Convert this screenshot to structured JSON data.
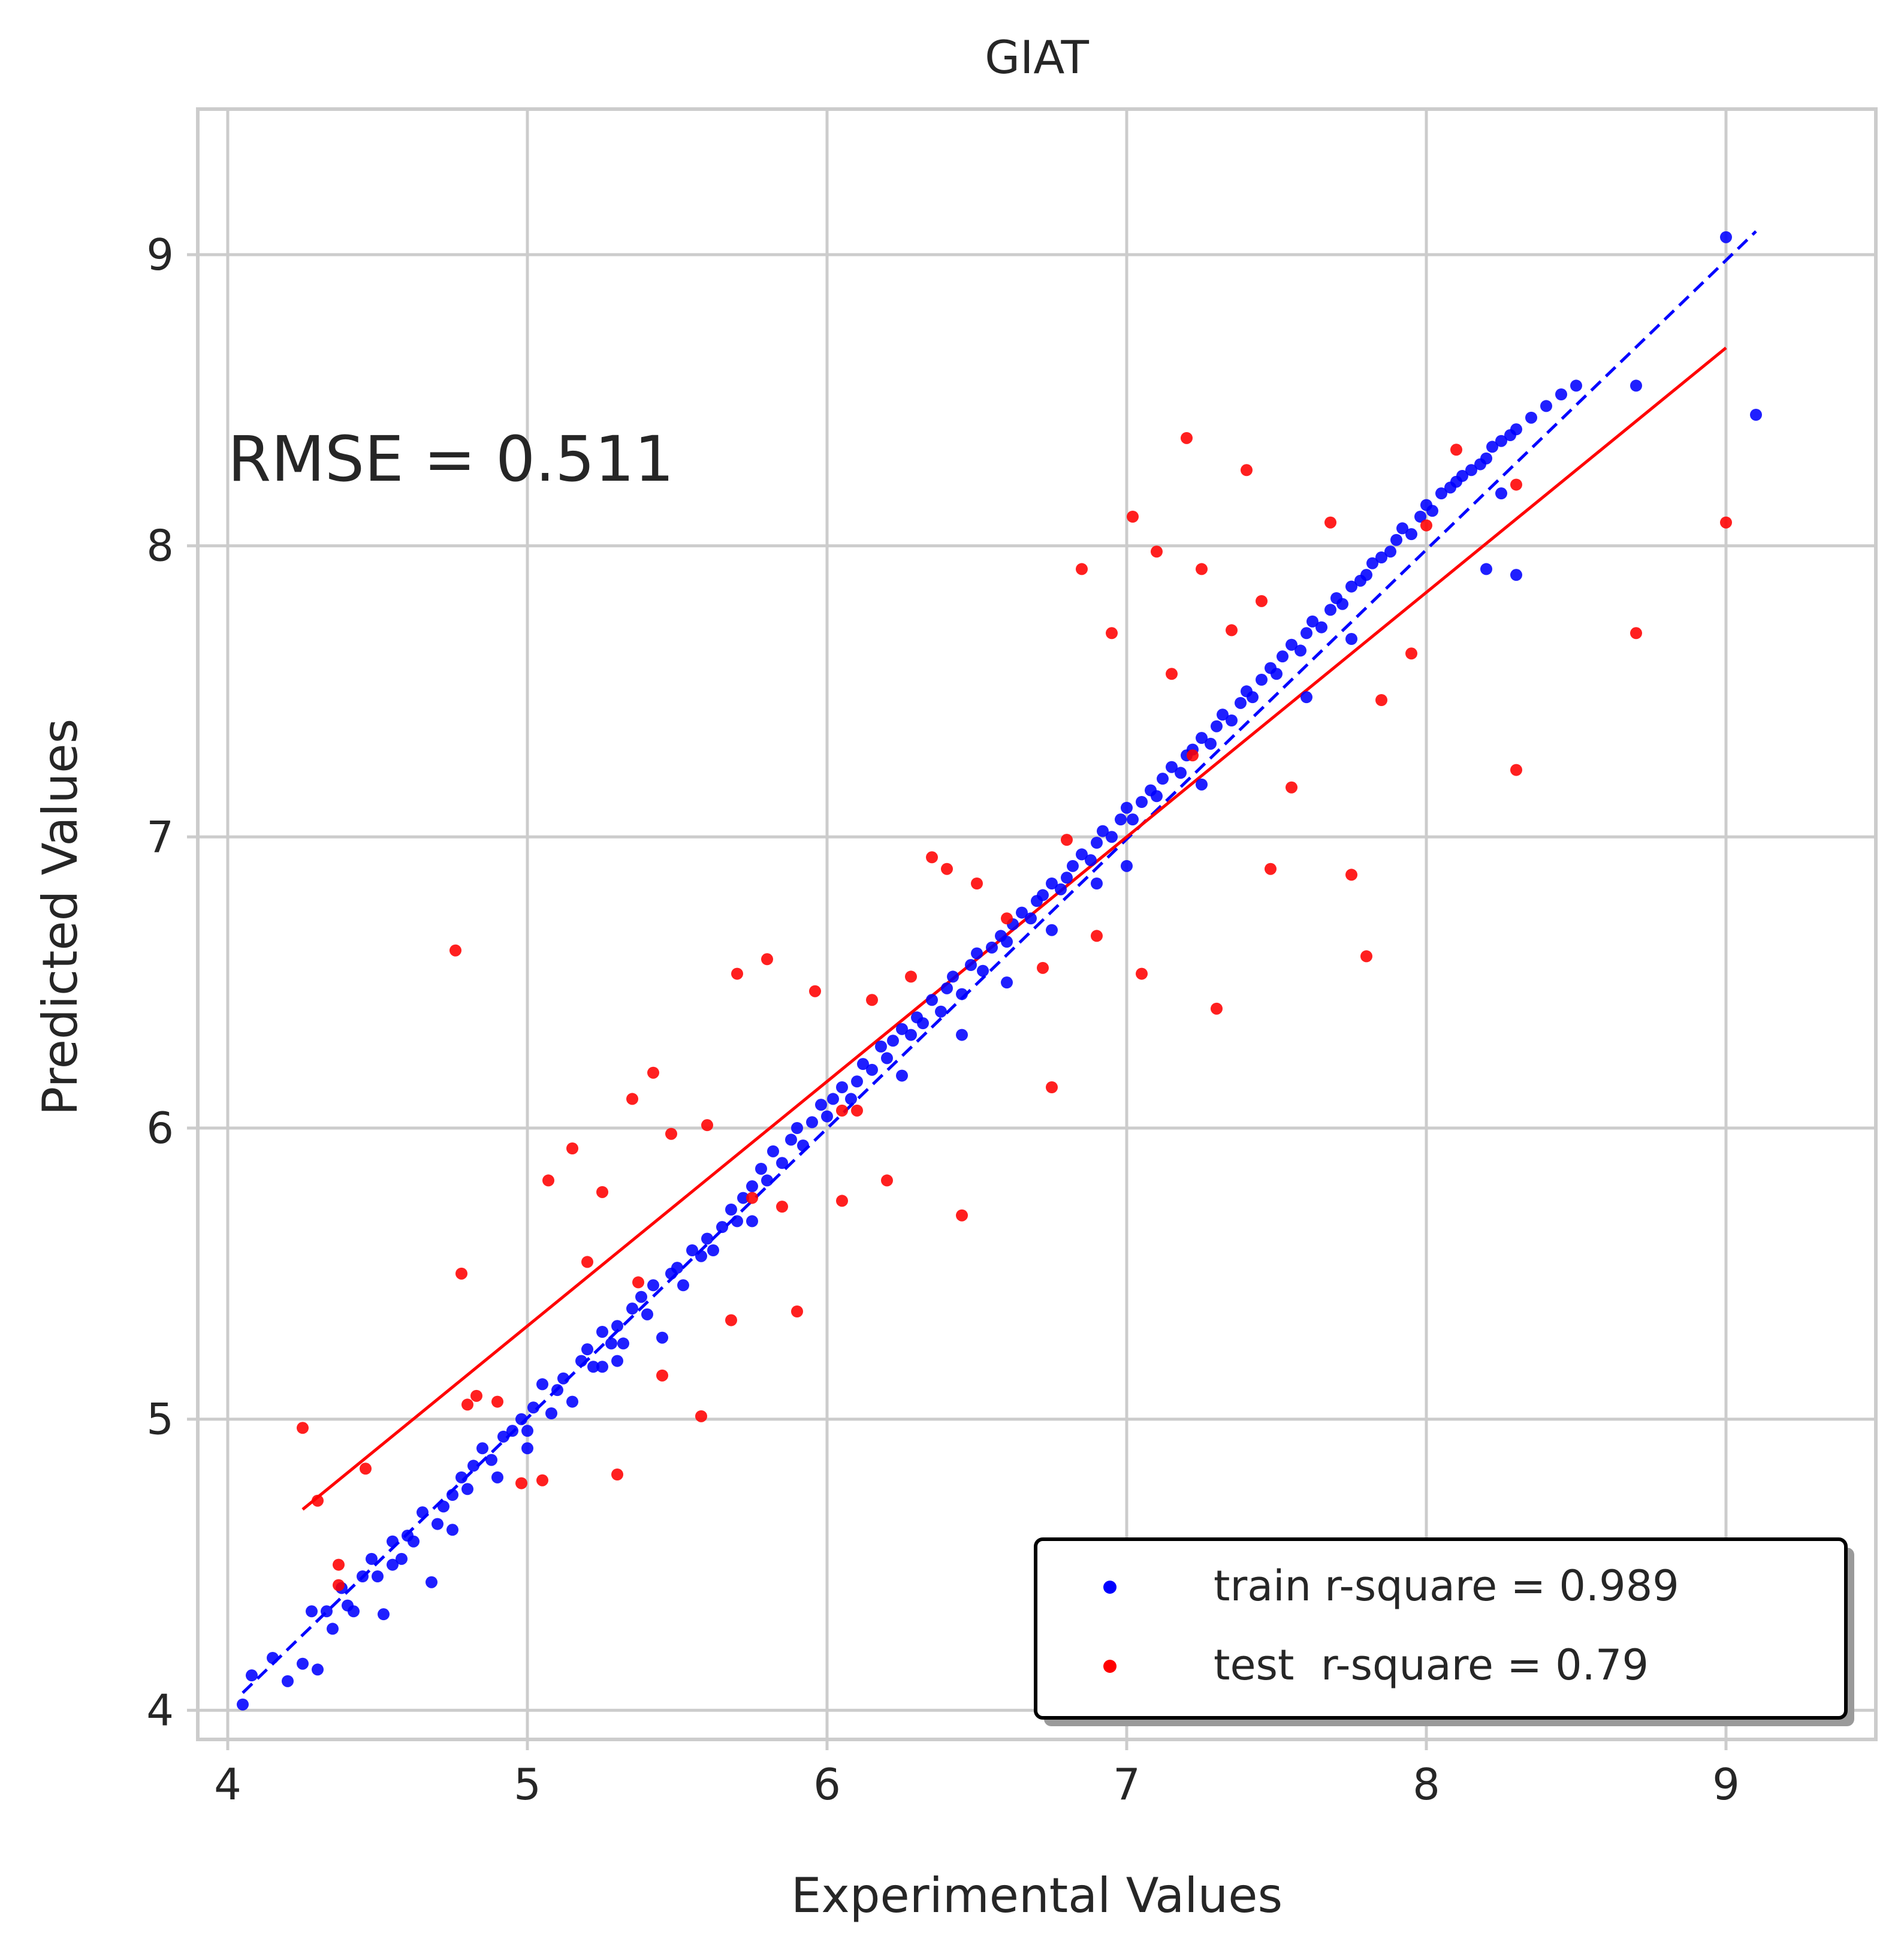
{
  "chart_data": {
    "type": "scatter",
    "title": "GIAT",
    "xlabel": "Experimental Values",
    "ylabel": "Predicted Values",
    "xlim": [
      3.9,
      9.5
    ],
    "ylim": [
      3.9,
      9.5
    ],
    "xticks": [
      4,
      5,
      6,
      7,
      8,
      9
    ],
    "yticks": [
      4,
      5,
      6,
      7,
      8,
      9
    ],
    "grid": true,
    "legend_position": "bottom-right",
    "annotation": "RMSE = 0.511",
    "colors": {
      "train": "#0000ff",
      "test": "#ff0000",
      "grid": "#cccccc"
    },
    "series": [
      {
        "name": "train r-square = 0.989",
        "color": "#0000ff",
        "points": [
          [
            4.05,
            4.02
          ],
          [
            4.08,
            4.12
          ],
          [
            4.15,
            4.18
          ],
          [
            4.2,
            4.1
          ],
          [
            4.25,
            4.16
          ],
          [
            4.28,
            4.34
          ],
          [
            4.3,
            4.14
          ],
          [
            4.33,
            4.34
          ],
          [
            4.35,
            4.28
          ],
          [
            4.38,
            4.42
          ],
          [
            4.4,
            4.36
          ],
          [
            4.42,
            4.34
          ],
          [
            4.45,
            4.46
          ],
          [
            4.48,
            4.52
          ],
          [
            4.5,
            4.46
          ],
          [
            4.52,
            4.33
          ],
          [
            4.55,
            4.58
          ],
          [
            4.58,
            4.52
          ],
          [
            4.6,
            4.6
          ],
          [
            4.62,
            4.58
          ],
          [
            4.65,
            4.68
          ],
          [
            4.68,
            4.44
          ],
          [
            4.7,
            4.64
          ],
          [
            4.72,
            4.7
          ],
          [
            4.75,
            4.74
          ],
          [
            4.78,
            4.8
          ],
          [
            4.8,
            4.76
          ],
          [
            4.82,
            4.84
          ],
          [
            4.85,
            4.9
          ],
          [
            4.88,
            4.86
          ],
          [
            4.9,
            4.8
          ],
          [
            4.92,
            4.94
          ],
          [
            4.95,
            4.96
          ],
          [
            4.98,
            5.0
          ],
          [
            5.0,
            4.96
          ],
          [
            5.02,
            5.04
          ],
          [
            5.05,
            5.12
          ],
          [
            5.08,
            5.02
          ],
          [
            5.1,
            5.1
          ],
          [
            5.12,
            5.14
          ],
          [
            5.15,
            5.06
          ],
          [
            5.18,
            5.2
          ],
          [
            5.2,
            5.24
          ],
          [
            5.22,
            5.18
          ],
          [
            5.25,
            5.3
          ],
          [
            5.28,
            5.26
          ],
          [
            5.3,
            5.32
          ],
          [
            5.32,
            5.26
          ],
          [
            5.35,
            5.38
          ],
          [
            5.38,
            5.42
          ],
          [
            5.4,
            5.36
          ],
          [
            5.42,
            5.46
          ],
          [
            5.45,
            5.28
          ],
          [
            5.48,
            5.5
          ],
          [
            5.5,
            5.52
          ],
          [
            5.52,
            5.46
          ],
          [
            5.55,
            5.58
          ],
          [
            5.58,
            5.56
          ],
          [
            5.6,
            5.62
          ],
          [
            5.62,
            5.58
          ],
          [
            5.65,
            5.66
          ],
          [
            5.68,
            5.72
          ],
          [
            5.7,
            5.68
          ],
          [
            5.72,
            5.76
          ],
          [
            5.75,
            5.8
          ],
          [
            5.78,
            5.86
          ],
          [
            5.8,
            5.82
          ],
          [
            5.82,
            5.92
          ],
          [
            5.85,
            5.88
          ],
          [
            5.88,
            5.96
          ],
          [
            5.9,
            6.0
          ],
          [
            5.92,
            5.94
          ],
          [
            5.95,
            6.02
          ],
          [
            5.98,
            6.08
          ],
          [
            6.0,
            6.04
          ],
          [
            6.02,
            6.1
          ],
          [
            6.05,
            6.14
          ],
          [
            6.08,
            6.1
          ],
          [
            6.1,
            6.16
          ],
          [
            6.12,
            6.22
          ],
          [
            6.15,
            6.2
          ],
          [
            6.18,
            6.28
          ],
          [
            6.2,
            6.24
          ],
          [
            6.22,
            6.3
          ],
          [
            6.25,
            6.34
          ],
          [
            6.28,
            6.32
          ],
          [
            6.3,
            6.38
          ],
          [
            6.32,
            6.36
          ],
          [
            6.35,
            6.44
          ],
          [
            6.38,
            6.4
          ],
          [
            6.4,
            6.48
          ],
          [
            6.42,
            6.52
          ],
          [
            6.45,
            6.46
          ],
          [
            6.48,
            6.56
          ],
          [
            6.5,
            6.6
          ],
          [
            6.52,
            6.54
          ],
          [
            6.55,
            6.62
          ],
          [
            6.58,
            6.66
          ],
          [
            6.6,
            6.64
          ],
          [
            6.62,
            6.7
          ],
          [
            6.65,
            6.74
          ],
          [
            6.68,
            6.72
          ],
          [
            6.7,
            6.78
          ],
          [
            6.72,
            6.8
          ],
          [
            6.75,
            6.84
          ],
          [
            6.78,
            6.82
          ],
          [
            6.8,
            6.86
          ],
          [
            6.82,
            6.9
          ],
          [
            6.85,
            6.94
          ],
          [
            6.88,
            6.92
          ],
          [
            6.9,
            6.98
          ],
          [
            6.92,
            7.02
          ],
          [
            6.95,
            7.0
          ],
          [
            6.98,
            7.06
          ],
          [
            7.0,
            7.1
          ],
          [
            7.02,
            7.06
          ],
          [
            7.05,
            7.12
          ],
          [
            7.08,
            7.16
          ],
          [
            7.1,
            7.14
          ],
          [
            7.12,
            7.2
          ],
          [
            7.15,
            7.24
          ],
          [
            7.18,
            7.22
          ],
          [
            7.2,
            7.28
          ],
          [
            7.22,
            7.3
          ],
          [
            7.25,
            7.34
          ],
          [
            7.28,
            7.32
          ],
          [
            7.3,
            7.38
          ],
          [
            7.32,
            7.42
          ],
          [
            7.35,
            7.4
          ],
          [
            7.38,
            7.46
          ],
          [
            7.4,
            7.5
          ],
          [
            7.42,
            7.48
          ],
          [
            7.45,
            7.54
          ],
          [
            7.48,
            7.58
          ],
          [
            7.5,
            7.56
          ],
          [
            7.52,
            7.62
          ],
          [
            7.55,
            7.66
          ],
          [
            7.58,
            7.64
          ],
          [
            7.6,
            7.7
          ],
          [
            7.62,
            7.74
          ],
          [
            7.65,
            7.72
          ],
          [
            7.68,
            7.78
          ],
          [
            7.7,
            7.82
          ],
          [
            7.72,
            7.8
          ],
          [
            7.75,
            7.86
          ],
          [
            7.78,
            7.88
          ],
          [
            7.8,
            7.9
          ],
          [
            7.82,
            7.94
          ],
          [
            7.85,
            7.96
          ],
          [
            7.88,
            7.98
          ],
          [
            7.9,
            8.02
          ],
          [
            7.92,
            8.06
          ],
          [
            7.95,
            8.04
          ],
          [
            7.98,
            8.1
          ],
          [
            8.0,
            8.14
          ],
          [
            8.02,
            8.12
          ],
          [
            8.05,
            8.18
          ],
          [
            8.08,
            8.2
          ],
          [
            8.1,
            8.22
          ],
          [
            8.12,
            8.24
          ],
          [
            8.15,
            8.26
          ],
          [
            8.18,
            8.28
          ],
          [
            8.2,
            8.3
          ],
          [
            8.22,
            8.34
          ],
          [
            8.25,
            8.36
          ],
          [
            8.28,
            8.38
          ],
          [
            8.3,
            8.4
          ],
          [
            8.35,
            8.44
          ],
          [
            8.4,
            8.48
          ],
          [
            8.45,
            8.52
          ],
          [
            8.5,
            8.55
          ],
          [
            8.7,
            8.55
          ],
          [
            9.0,
            9.06
          ],
          [
            9.1,
            8.45
          ],
          [
            4.55,
            4.5
          ],
          [
            4.75,
            4.62
          ],
          [
            5.25,
            5.18
          ],
          [
            5.75,
            5.68
          ],
          [
            6.25,
            6.18
          ],
          [
            6.75,
            6.68
          ],
          [
            7.25,
            7.18
          ],
          [
            7.75,
            7.68
          ],
          [
            8.25,
            8.18
          ],
          [
            6.6,
            6.5
          ],
          [
            7.0,
            6.9
          ],
          [
            7.6,
            7.48
          ],
          [
            8.2,
            7.92
          ],
          [
            8.3,
            7.9
          ],
          [
            6.45,
            6.32
          ],
          [
            5.0,
            4.9
          ],
          [
            5.3,
            5.2
          ],
          [
            6.9,
            6.84
          ]
        ]
      },
      {
        "name": "test  r-square = 0.79",
        "color": "#ff0000",
        "points": [
          [
            4.25,
            4.97
          ],
          [
            4.3,
            4.72
          ],
          [
            4.37,
            4.5
          ],
          [
            4.37,
            4.43
          ],
          [
            4.46,
            4.83
          ],
          [
            4.76,
            6.61
          ],
          [
            4.78,
            5.5
          ],
          [
            4.8,
            5.05
          ],
          [
            4.83,
            5.08
          ],
          [
            4.9,
            5.06
          ],
          [
            4.98,
            4.78
          ],
          [
            5.05,
            4.79
          ],
          [
            5.07,
            5.82
          ],
          [
            5.15,
            5.93
          ],
          [
            5.2,
            5.54
          ],
          [
            5.25,
            5.78
          ],
          [
            5.3,
            4.81
          ],
          [
            5.35,
            6.1
          ],
          [
            5.37,
            5.47
          ],
          [
            5.42,
            6.19
          ],
          [
            5.45,
            5.15
          ],
          [
            5.48,
            5.98
          ],
          [
            5.58,
            5.01
          ],
          [
            5.6,
            6.01
          ],
          [
            5.68,
            5.34
          ],
          [
            5.7,
            6.53
          ],
          [
            5.75,
            5.76
          ],
          [
            5.8,
            6.58
          ],
          [
            5.85,
            5.73
          ],
          [
            5.9,
            5.37
          ],
          [
            5.96,
            6.47
          ],
          [
            6.05,
            5.75
          ],
          [
            6.1,
            6.06
          ],
          [
            6.15,
            6.44
          ],
          [
            6.2,
            5.82
          ],
          [
            6.28,
            6.52
          ],
          [
            6.35,
            6.93
          ],
          [
            6.4,
            6.89
          ],
          [
            6.45,
            5.7
          ],
          [
            6.5,
            6.84
          ],
          [
            6.6,
            6.72
          ],
          [
            6.75,
            6.14
          ],
          [
            6.8,
            6.99
          ],
          [
            6.85,
            7.92
          ],
          [
            6.9,
            6.66
          ],
          [
            6.95,
            7.7
          ],
          [
            7.02,
            8.1
          ],
          [
            7.05,
            6.53
          ],
          [
            7.1,
            7.98
          ],
          [
            7.15,
            7.56
          ],
          [
            7.2,
            8.37
          ],
          [
            7.25,
            7.92
          ],
          [
            7.3,
            6.41
          ],
          [
            7.35,
            7.71
          ],
          [
            7.4,
            8.26
          ],
          [
            7.45,
            7.81
          ],
          [
            7.48,
            6.89
          ],
          [
            7.55,
            7.17
          ],
          [
            7.68,
            8.08
          ],
          [
            7.75,
            6.87
          ],
          [
            7.8,
            6.59
          ],
          [
            7.85,
            7.47
          ],
          [
            7.95,
            7.63
          ],
          [
            8.0,
            8.07
          ],
          [
            8.1,
            8.33
          ],
          [
            8.3,
            7.23
          ],
          [
            8.3,
            8.21
          ],
          [
            8.7,
            7.7
          ],
          [
            9.0,
            8.08
          ],
          [
            6.05,
            6.06
          ],
          [
            6.72,
            6.55
          ],
          [
            7.22,
            7.28
          ]
        ]
      }
    ],
    "lines": [
      {
        "name": "identity",
        "style": "dashed",
        "color": "#0000ff",
        "x": [
          4.05,
          9.1
        ],
        "y": [
          4.06,
          9.08
        ]
      },
      {
        "name": "test fit",
        "style": "solid",
        "color": "#ff0000",
        "x": [
          4.25,
          9.0
        ],
        "y": [
          4.69,
          8.68
        ]
      }
    ]
  }
}
